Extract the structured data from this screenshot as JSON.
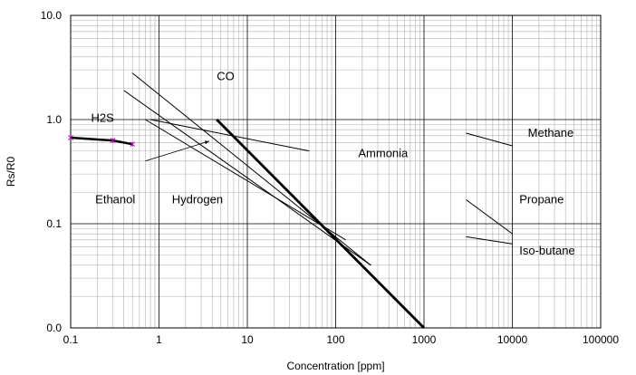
{
  "chart_data": {
    "type": "line",
    "title": "",
    "xlabel": "Concentration [ppm]",
    "ylabel": "Rs/R0",
    "x_scale": "log",
    "y_scale": "log",
    "xlim": [
      0.1,
      100000
    ],
    "ylim": [
      0.01,
      10
    ],
    "x_ticks": [
      {
        "value": 0.1,
        "label": "0.1"
      },
      {
        "value": 1,
        "label": "1"
      },
      {
        "value": 10,
        "label": "10"
      },
      {
        "value": 100,
        "label": "100"
      },
      {
        "value": 1000,
        "label": "1000"
      },
      {
        "value": 10000,
        "label": "10000"
      },
      {
        "value": 100000,
        "label": "100000"
      }
    ],
    "y_ticks": [
      {
        "value": 0.01,
        "label": "0.0"
      },
      {
        "value": 0.1,
        "label": "0.1"
      },
      {
        "value": 1,
        "label": "1.0"
      },
      {
        "value": 10,
        "label": "10.0"
      }
    ],
    "grid": true,
    "series": [
      {
        "key": "h2s",
        "x": [
          0.1,
          0.3,
          0.5
        ],
        "y": [
          0.67,
          0.63,
          0.58
        ],
        "color": "#000000",
        "width": 2.5,
        "markers": true,
        "marker_color": "#b000b0"
      },
      {
        "key": "co",
        "x": [
          4.5,
          1000
        ],
        "y": [
          1.0,
          0.01
        ],
        "color": "#000000",
        "width": 2.8
      },
      {
        "key": "line_a",
        "x": [
          0.5,
          250
        ],
        "y": [
          2.8,
          0.04
        ],
        "color": "#000000",
        "width": 1
      },
      {
        "key": "line_b",
        "x": [
          0.4,
          250
        ],
        "y": [
          1.9,
          0.04
        ],
        "color": "#000000",
        "width": 1
      },
      {
        "key": "line_c",
        "x": [
          0.7,
          130
        ],
        "y": [
          1.0,
          0.07
        ],
        "color": "#000000",
        "width": 1
      },
      {
        "key": "ammonia_line",
        "x": [
          0.8,
          50
        ],
        "y": [
          1.0,
          0.5
        ],
        "color": "#000000",
        "width": 1
      },
      {
        "key": "methane_line",
        "x": [
          3000,
          10000
        ],
        "y": [
          0.74,
          0.56
        ],
        "color": "#000000",
        "width": 1
      },
      {
        "key": "propane_line",
        "x": [
          3000,
          10000
        ],
        "y": [
          0.17,
          0.08
        ],
        "color": "#000000",
        "width": 1
      },
      {
        "key": "isobutane_line",
        "x": [
          3000,
          10000
        ],
        "y": [
          0.075,
          0.064
        ],
        "color": "#000000",
        "width": 1
      }
    ],
    "annotations": [
      {
        "text": "CO",
        "x": 4.5,
        "y": 2.6
      },
      {
        "text": "H2S",
        "x": 0.17,
        "y": 1.03
      },
      {
        "text": "Ammonia",
        "x": 180,
        "y": 0.47
      },
      {
        "text": "Ethanol",
        "x": 0.19,
        "y": 0.17
      },
      {
        "text": "Hydrogen",
        "x": 1.4,
        "y": 0.17
      },
      {
        "text": "Methane",
        "x": 15000,
        "y": 0.74
      },
      {
        "text": "Propane",
        "x": 12000,
        "y": 0.17
      },
      {
        "text": "Iso-butane",
        "x": 12000,
        "y": 0.055
      }
    ],
    "arrows": [
      {
        "from": [
          0.7,
          0.4
        ],
        "to": [
          3.7,
          0.62
        ]
      }
    ]
  }
}
